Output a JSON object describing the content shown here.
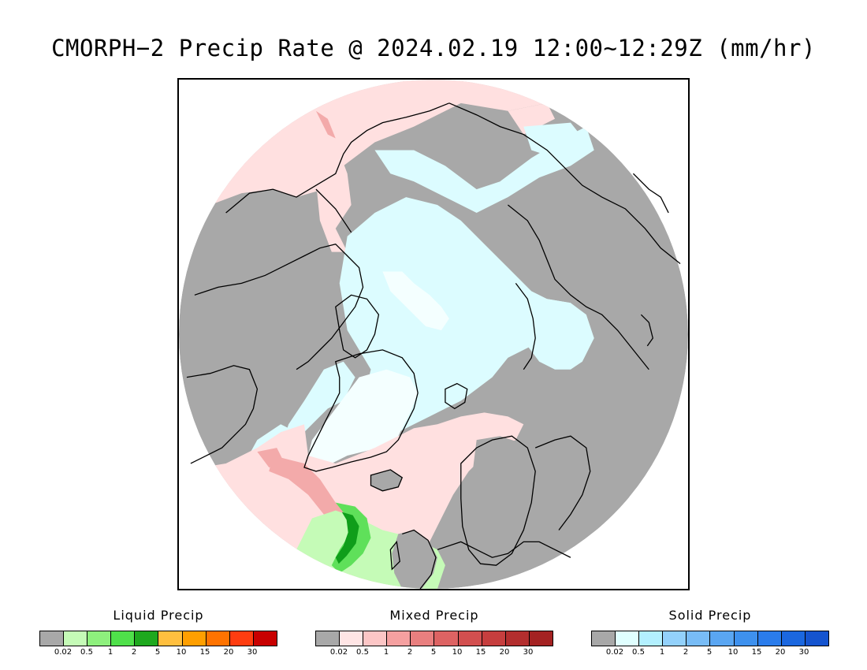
{
  "title": "CMORPH−2 Precip Rate @ 2024.02.19 12:00~12:29Z (mm/hr)",
  "map": {
    "projection": "north-polar-stereographic",
    "colors": {
      "no_precip": "#a8a8a8",
      "mixed_light": "#ffe0e0",
      "mixed_mid": "#f3aaaa",
      "solid_light": "#dcfcff",
      "solid_white": "#f4ffff",
      "liquid_light": "#c5fbb7",
      "liquid_mid": "#5fe05a",
      "liquid_dark": "#0f9e1a",
      "coastline": "#000000"
    }
  },
  "legends": [
    {
      "title": "Liquid Precip",
      "colors": [
        "#a8a8a8",
        "#c5fbb7",
        "#8ef07d",
        "#4fe04a",
        "#1ea81e",
        "#ffbf3f",
        "#ff9f00",
        "#ff7300",
        "#ff3d10",
        "#c80000"
      ],
      "ticks": [
        "0.02",
        "0.5",
        "1",
        "2",
        "5",
        "10",
        "15",
        "20",
        "30"
      ]
    },
    {
      "title": "Mixed Precip",
      "colors": [
        "#a8a8a8",
        "#ffe5e5",
        "#fcc6c6",
        "#f5a0a0",
        "#e97f7f",
        "#dd6363",
        "#d24f4f",
        "#c63e3e",
        "#b32e2e",
        "#a42222"
      ],
      "ticks": [
        "0.02",
        "0.5",
        "1",
        "2",
        "5",
        "10",
        "15",
        "20",
        "30"
      ]
    },
    {
      "title": "Solid Precip",
      "colors": [
        "#a8a8a8",
        "#e0ffff",
        "#b3f0ff",
        "#93d1fb",
        "#78bcf6",
        "#5aa6f2",
        "#3e91ee",
        "#2a7ceb",
        "#1b67df",
        "#1554cf"
      ],
      "ticks": [
        "0.02",
        "0.5",
        "1",
        "2",
        "5",
        "10",
        "15",
        "20",
        "30"
      ]
    }
  ]
}
